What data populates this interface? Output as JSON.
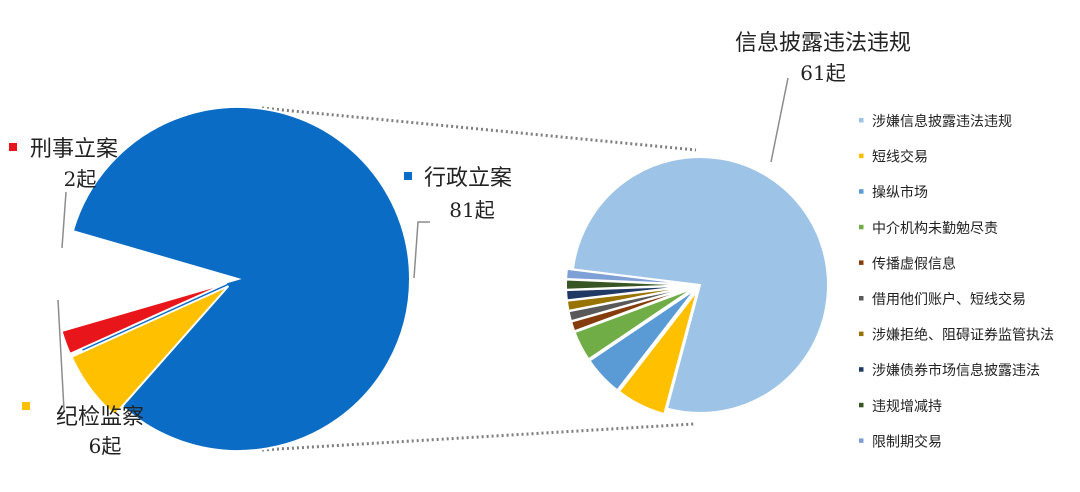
{
  "chart_data": [
    {
      "type": "pie",
      "unit": "起",
      "slices": [
        {
          "name": "行政立案",
          "value": 81,
          "color": "#0A6CC4"
        },
        {
          "name": "刑事立案",
          "value": 2,
          "color": "#E8151B"
        },
        {
          "name": "纪检监察",
          "value": 6,
          "color": "#FFC000"
        }
      ]
    },
    {
      "type": "pie",
      "unit": "起",
      "callout": {
        "name": "信息披露违法违规",
        "value": 61
      },
      "legend_position": "right",
      "slices": [
        {
          "name": "涉嫌信息披露违法违规",
          "value": 61,
          "color": "#9DC3E6"
        },
        {
          "name": "短线交易",
          "value": 5,
          "color": "#FFC000"
        },
        {
          "name": "操纵市场",
          "value": 4,
          "color": "#5B9BD5"
        },
        {
          "name": "中介机构未勤勉尽责",
          "value": 3,
          "color": "#70AD47"
        },
        {
          "name": "传播虚假信息",
          "value": 1,
          "color": "#843C0C"
        },
        {
          "name": "借用他们账户、短线交易",
          "value": 1,
          "color": "#595959"
        },
        {
          "name": "涉嫌拒绝、阻碍证券监管执法",
          "value": 1,
          "color": "#997300"
        },
        {
          "name": "涉嫌债券市场信息披露违法",
          "value": 1,
          "color": "#1F3864"
        },
        {
          "name": "违规增减持",
          "value": 1,
          "color": "#375623"
        },
        {
          "name": "限制期交易",
          "value": 1,
          "color": "#7F9FD7"
        }
      ]
    }
  ]
}
